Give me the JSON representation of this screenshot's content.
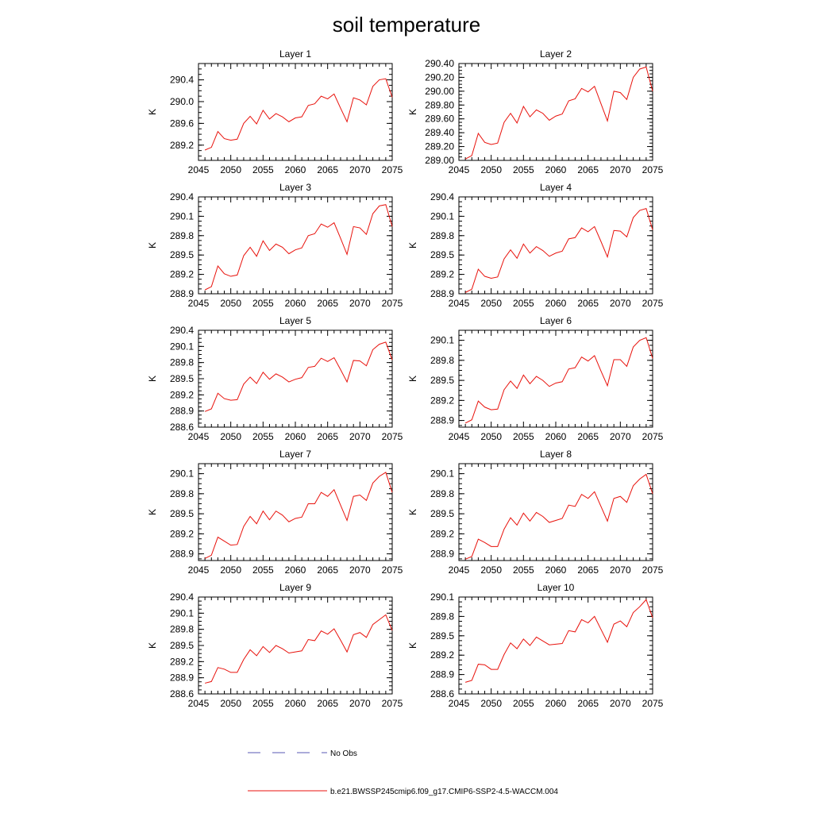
{
  "figure": {
    "title": "soil temperature",
    "legend": [
      {
        "label": "No Obs",
        "style": "dashed",
        "color": "#5a5ab4"
      },
      {
        "label": "b.e21.BWSSP245cmip6.f09_g17.CMIP6-SSP2-4.5-WACCM.004",
        "style": "solid",
        "color": "#e8120c"
      }
    ]
  },
  "colors": {
    "series": "#e8120c",
    "axis": "#000000"
  },
  "chart_data": [
    {
      "type": "line",
      "title": "Layer 1",
      "ylabel": "K",
      "xlim": [
        2045,
        2075
      ],
      "ylim": [
        288.92,
        290.7
      ],
      "xticks": [
        "2045",
        "2050",
        "2055",
        "2060",
        "2065",
        "2070",
        "2075"
      ],
      "yticks": [
        "289.2",
        "289.6",
        "290.0",
        "290.4"
      ],
      "series": [
        {
          "x": [
            2046,
            2047,
            2048,
            2049,
            2050,
            2051,
            2052,
            2053,
            2054,
            2055,
            2056,
            2057,
            2058,
            2059,
            2060,
            2061,
            2062,
            2063,
            2064,
            2065,
            2066,
            2067,
            2068,
            2069,
            2070,
            2071,
            2072,
            2073,
            2074,
            2075
          ],
          "values": [
            289.11,
            289.16,
            289.45,
            289.32,
            289.29,
            289.31,
            289.6,
            289.73,
            289.59,
            289.84,
            289.68,
            289.78,
            289.72,
            289.63,
            289.7,
            289.72,
            289.93,
            289.96,
            290.1,
            290.05,
            290.14,
            289.88,
            289.63,
            290.07,
            290.03,
            289.94,
            290.28,
            290.4,
            290.42,
            290.08
          ]
        }
      ]
    },
    {
      "type": "line",
      "title": "Layer 2",
      "ylabel": "K",
      "xlim": [
        2045,
        2075
      ],
      "ylim": [
        289.0,
        290.4
      ],
      "xticks": [
        "2045",
        "2050",
        "2055",
        "2060",
        "2065",
        "2070",
        "2075"
      ],
      "yticks": [
        "289.00",
        "289.20",
        "289.40",
        "289.60",
        "289.80",
        "290.00",
        "290.20",
        "290.40"
      ],
      "series": [
        {
          "x": [
            2046,
            2047,
            2048,
            2049,
            2050,
            2051,
            2052,
            2053,
            2054,
            2055,
            2056,
            2057,
            2058,
            2059,
            2060,
            2061,
            2062,
            2063,
            2064,
            2065,
            2066,
            2067,
            2068,
            2069,
            2070,
            2071,
            2072,
            2073,
            2074,
            2075
          ],
          "values": [
            289.02,
            289.07,
            289.39,
            289.26,
            289.23,
            289.25,
            289.55,
            289.68,
            289.54,
            289.78,
            289.63,
            289.73,
            289.68,
            289.58,
            289.64,
            289.67,
            289.86,
            289.89,
            290.04,
            289.99,
            290.07,
            289.82,
            289.57,
            290.0,
            289.98,
            289.88,
            290.2,
            290.32,
            290.35,
            290.0
          ]
        }
      ]
    },
    {
      "type": "line",
      "title": "Layer 3",
      "ylabel": "K",
      "xlim": [
        2045,
        2075
      ],
      "ylim": [
        288.9,
        290.4
      ],
      "xticks": [
        "2045",
        "2050",
        "2055",
        "2060",
        "2065",
        "2070",
        "2075"
      ],
      "yticks": [
        "288.9",
        "289.2",
        "289.5",
        "289.8",
        "290.1",
        "290.4"
      ],
      "series": [
        {
          "x": [
            2046,
            2047,
            2048,
            2049,
            2050,
            2051,
            2052,
            2053,
            2054,
            2055,
            2056,
            2057,
            2058,
            2059,
            2060,
            2061,
            2062,
            2063,
            2064,
            2065,
            2066,
            2067,
            2068,
            2069,
            2070,
            2071,
            2072,
            2073,
            2074,
            2075
          ],
          "values": [
            288.96,
            289.01,
            289.33,
            289.21,
            289.17,
            289.19,
            289.49,
            289.62,
            289.48,
            289.72,
            289.57,
            289.67,
            289.62,
            289.52,
            289.58,
            289.61,
            289.8,
            289.83,
            289.98,
            289.93,
            290.0,
            289.76,
            289.51,
            289.94,
            289.92,
            289.82,
            290.14,
            290.26,
            290.28,
            289.94
          ]
        }
      ]
    },
    {
      "type": "line",
      "title": "Layer 4",
      "ylabel": "K",
      "xlim": [
        2045,
        2075
      ],
      "ylim": [
        288.9,
        290.4
      ],
      "xticks": [
        "2045",
        "2050",
        "2055",
        "2060",
        "2065",
        "2070",
        "2075"
      ],
      "yticks": [
        "288.9",
        "289.2",
        "289.5",
        "289.8",
        "290.1",
        "290.4"
      ],
      "series": [
        {
          "x": [
            2046,
            2047,
            2048,
            2049,
            2050,
            2051,
            2052,
            2053,
            2054,
            2055,
            2056,
            2057,
            2058,
            2059,
            2060,
            2061,
            2062,
            2063,
            2064,
            2065,
            2066,
            2067,
            2068,
            2069,
            2070,
            2071,
            2072,
            2073,
            2074,
            2075
          ],
          "values": [
            288.92,
            288.97,
            289.28,
            289.17,
            289.14,
            289.16,
            289.44,
            289.58,
            289.45,
            289.67,
            289.53,
            289.63,
            289.57,
            289.48,
            289.53,
            289.56,
            289.75,
            289.77,
            289.92,
            289.86,
            289.94,
            289.71,
            289.47,
            289.88,
            289.87,
            289.78,
            290.08,
            290.19,
            290.22,
            289.89
          ]
        }
      ]
    },
    {
      "type": "line",
      "title": "Layer 5",
      "ylabel": "K",
      "xlim": [
        2045,
        2075
      ],
      "ylim": [
        288.6,
        290.4
      ],
      "xticks": [
        "2045",
        "2050",
        "2055",
        "2060",
        "2065",
        "2070",
        "2075"
      ],
      "yticks": [
        "288.6",
        "288.9",
        "289.2",
        "289.5",
        "289.8",
        "290.1",
        "290.4"
      ],
      "series": [
        {
          "x": [
            2046,
            2047,
            2048,
            2049,
            2050,
            2051,
            2052,
            2053,
            2054,
            2055,
            2056,
            2057,
            2058,
            2059,
            2060,
            2061,
            2062,
            2063,
            2064,
            2065,
            2066,
            2067,
            2068,
            2069,
            2070,
            2071,
            2072,
            2073,
            2074,
            2075
          ],
          "values": [
            288.89,
            288.94,
            289.23,
            289.13,
            289.1,
            289.11,
            289.4,
            289.53,
            289.41,
            289.62,
            289.49,
            289.59,
            289.53,
            289.44,
            289.49,
            289.52,
            289.71,
            289.73,
            289.88,
            289.82,
            289.89,
            289.67,
            289.44,
            289.84,
            289.83,
            289.74,
            290.04,
            290.14,
            290.18,
            289.85
          ]
        }
      ]
    },
    {
      "type": "line",
      "title": "Layer 6",
      "ylabel": "K",
      "xlim": [
        2045,
        2075
      ],
      "ylim": [
        288.8,
        290.25
      ],
      "xticks": [
        "2045",
        "2050",
        "2055",
        "2060",
        "2065",
        "2070",
        "2075"
      ],
      "yticks": [
        "288.9",
        "289.2",
        "289.5",
        "289.8",
        "290.1"
      ],
      "series": [
        {
          "x": [
            2046,
            2047,
            2048,
            2049,
            2050,
            2051,
            2052,
            2053,
            2054,
            2055,
            2056,
            2057,
            2058,
            2059,
            2060,
            2061,
            2062,
            2063,
            2064,
            2065,
            2066,
            2067,
            2068,
            2069,
            2070,
            2071,
            2072,
            2073,
            2074,
            2075
          ],
          "values": [
            288.86,
            288.91,
            289.19,
            289.1,
            289.06,
            289.07,
            289.36,
            289.49,
            289.38,
            289.58,
            289.45,
            289.56,
            289.5,
            289.41,
            289.46,
            289.48,
            289.67,
            289.69,
            289.85,
            289.79,
            289.87,
            289.64,
            289.42,
            289.81,
            289.81,
            289.71,
            290.0,
            290.1,
            290.14,
            289.83
          ]
        }
      ]
    },
    {
      "type": "line",
      "title": "Layer 7",
      "ylabel": "K",
      "xlim": [
        2045,
        2075
      ],
      "ylim": [
        288.8,
        290.25
      ],
      "xticks": [
        "2045",
        "2050",
        "2055",
        "2060",
        "2065",
        "2070",
        "2075"
      ],
      "yticks": [
        "288.9",
        "289.2",
        "289.5",
        "289.8",
        "290.1"
      ],
      "series": [
        {
          "x": [
            2046,
            2047,
            2048,
            2049,
            2050,
            2051,
            2052,
            2053,
            2054,
            2055,
            2056,
            2057,
            2058,
            2059,
            2060,
            2061,
            2062,
            2063,
            2064,
            2065,
            2066,
            2067,
            2068,
            2069,
            2070,
            2071,
            2072,
            2073,
            2074,
            2075
          ],
          "values": [
            288.83,
            288.88,
            289.15,
            289.09,
            289.03,
            289.04,
            289.31,
            289.46,
            289.35,
            289.54,
            289.41,
            289.54,
            289.48,
            289.38,
            289.43,
            289.45,
            289.65,
            289.65,
            289.82,
            289.76,
            289.86,
            289.63,
            289.4,
            289.76,
            289.78,
            289.7,
            289.96,
            290.06,
            290.12,
            289.82
          ]
        }
      ]
    },
    {
      "type": "line",
      "title": "Layer 8",
      "ylabel": "K",
      "xlim": [
        2045,
        2075
      ],
      "ylim": [
        288.8,
        290.25
      ],
      "xticks": [
        "2045",
        "2050",
        "2055",
        "2060",
        "2065",
        "2070",
        "2075"
      ],
      "yticks": [
        "288.9",
        "289.2",
        "289.5",
        "289.8",
        "290.1"
      ],
      "series": [
        {
          "x": [
            2046,
            2047,
            2048,
            2049,
            2050,
            2051,
            2052,
            2053,
            2054,
            2055,
            2056,
            2057,
            2058,
            2059,
            2060,
            2061,
            2062,
            2063,
            2064,
            2065,
            2066,
            2067,
            2068,
            2069,
            2070,
            2071,
            2072,
            2073,
            2074,
            2075
          ],
          "values": [
            288.82,
            288.86,
            289.12,
            289.07,
            289.01,
            289.01,
            289.27,
            289.44,
            289.33,
            289.51,
            289.39,
            289.52,
            289.46,
            289.37,
            289.4,
            289.43,
            289.63,
            289.61,
            289.79,
            289.73,
            289.83,
            289.61,
            289.39,
            289.73,
            289.76,
            289.67,
            289.92,
            290.02,
            290.09,
            289.8
          ]
        }
      ]
    },
    {
      "type": "line",
      "title": "Layer 9",
      "ylabel": "K",
      "xlim": [
        2045,
        2075
      ],
      "ylim": [
        288.6,
        290.4
      ],
      "xticks": [
        "2045",
        "2050",
        "2055",
        "2060",
        "2065",
        "2070",
        "2075"
      ],
      "yticks": [
        "288.6",
        "288.9",
        "289.2",
        "289.5",
        "289.8",
        "290.1",
        "290.4"
      ],
      "series": [
        {
          "x": [
            2046,
            2047,
            2048,
            2049,
            2050,
            2051,
            2052,
            2053,
            2054,
            2055,
            2056,
            2057,
            2058,
            2059,
            2060,
            2061,
            2062,
            2063,
            2064,
            2065,
            2066,
            2067,
            2068,
            2069,
            2070,
            2071,
            2072,
            2073,
            2074,
            2075
          ],
          "values": [
            288.8,
            288.83,
            289.09,
            289.06,
            289.0,
            289.0,
            289.24,
            289.42,
            289.31,
            289.48,
            289.37,
            289.5,
            289.44,
            289.36,
            289.38,
            289.4,
            289.61,
            289.59,
            289.77,
            289.71,
            289.81,
            289.6,
            289.38,
            289.7,
            289.74,
            289.65,
            289.89,
            289.98,
            290.07,
            289.78
          ]
        }
      ]
    },
    {
      "type": "line",
      "title": "Layer 10",
      "ylabel": "K",
      "xlim": [
        2045,
        2075
      ],
      "ylim": [
        288.6,
        290.1
      ],
      "xticks": [
        "2045",
        "2050",
        "2055",
        "2060",
        "2065",
        "2070",
        "2075"
      ],
      "yticks": [
        "288.6",
        "288.9",
        "289.2",
        "289.5",
        "289.8",
        "290.1"
      ],
      "series": [
        {
          "x": [
            2046,
            2047,
            2048,
            2049,
            2050,
            2051,
            2052,
            2053,
            2054,
            2055,
            2056,
            2057,
            2058,
            2059,
            2060,
            2061,
            2062,
            2063,
            2064,
            2065,
            2066,
            2067,
            2068,
            2069,
            2070,
            2071,
            2072,
            2073,
            2074,
            2075
          ],
          "values": [
            288.78,
            288.81,
            289.06,
            289.05,
            288.98,
            288.98,
            289.21,
            289.39,
            289.3,
            289.45,
            289.35,
            289.48,
            289.42,
            289.36,
            289.37,
            289.38,
            289.58,
            289.56,
            289.75,
            289.7,
            289.8,
            289.6,
            289.4,
            289.68,
            289.73,
            289.64,
            289.86,
            289.95,
            290.06,
            289.78
          ]
        }
      ]
    }
  ]
}
